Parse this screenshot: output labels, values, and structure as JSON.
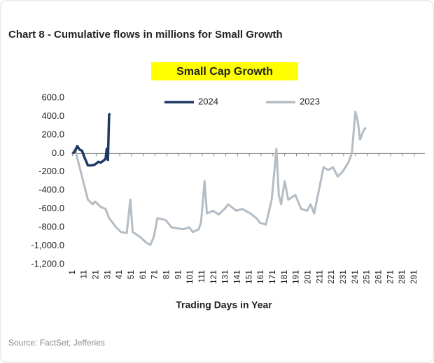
{
  "chart_data": {
    "type": "line",
    "title": "Chart 8 - Cumulative flows in millions for Small Growth",
    "subtitle": "Small Cap Growth",
    "x_label": "Trading Days in Year",
    "source": "Source: FactSet; Jefferies",
    "xlim": [
      0,
      300
    ],
    "xticks": [
      1,
      11,
      21,
      31,
      41,
      51,
      61,
      71,
      81,
      91,
      101,
      111,
      121,
      131,
      141,
      151,
      161,
      171,
      181,
      191,
      201,
      211,
      221,
      231,
      241,
      251,
      261,
      271,
      281,
      291
    ],
    "ylim": [
      -1200,
      600
    ],
    "yticks": [
      {
        "value": 600,
        "label": "600.0"
      },
      {
        "value": 400,
        "label": "400.0"
      },
      {
        "value": 200,
        "label": "200.0"
      },
      {
        "value": 0,
        "label": "0.0"
      },
      {
        "value": -200,
        "label": "-200.0"
      },
      {
        "value": -400,
        "label": "-400.0"
      },
      {
        "value": -600,
        "label": "-600.0"
      },
      {
        "value": -800,
        "label": "-800.0"
      },
      {
        "value": -1000,
        "label": "-1,000.0"
      },
      {
        "value": -1200,
        "label": "-1,200.0"
      }
    ],
    "grid": false,
    "legend": "top",
    "series": [
      {
        "name": "2024",
        "color": "#1f3864",
        "x": [
          1,
          3,
          5,
          7,
          9,
          11,
          14,
          17,
          20,
          23,
          25,
          27,
          29,
          30,
          31,
          32,
          33
        ],
        "values": [
          0,
          20,
          80,
          40,
          30,
          -40,
          -130,
          -130,
          -120,
          -90,
          -100,
          -80,
          -60,
          50,
          -70,
          420,
          430
        ]
      },
      {
        "name": "2023",
        "color": "#b4bcc4",
        "x": [
          1,
          3,
          6,
          9,
          11,
          14,
          18,
          20,
          25,
          29,
          32,
          38,
          42,
          47,
          50,
          52,
          58,
          63,
          67,
          70,
          73,
          80,
          85,
          95,
          100,
          103,
          108,
          110,
          113,
          115,
          120,
          125,
          130,
          133,
          140,
          145,
          152,
          157,
          160,
          165,
          170,
          174,
          176,
          178,
          181,
          184,
          190,
          195,
          200,
          203,
          206,
          210,
          214,
          218,
          222,
          226,
          230,
          235,
          238,
          241,
          243,
          245,
          248,
          250
        ],
        "values": [
          0,
          50,
          -100,
          -250,
          -350,
          -500,
          -550,
          -520,
          -580,
          -600,
          -700,
          -800,
          -850,
          -860,
          -500,
          -850,
          -900,
          -960,
          -990,
          -900,
          -700,
          -720,
          -800,
          -820,
          -800,
          -850,
          -820,
          -750,
          -300,
          -650,
          -620,
          -660,
          -600,
          -550,
          -620,
          -600,
          -650,
          -700,
          -750,
          -770,
          -500,
          50,
          -450,
          -550,
          -300,
          -500,
          -450,
          -600,
          -620,
          -550,
          -650,
          -400,
          -150,
          -180,
          -150,
          -250,
          -200,
          -100,
          0,
          450,
          350,
          150,
          250,
          280
        ]
      }
    ]
  }
}
